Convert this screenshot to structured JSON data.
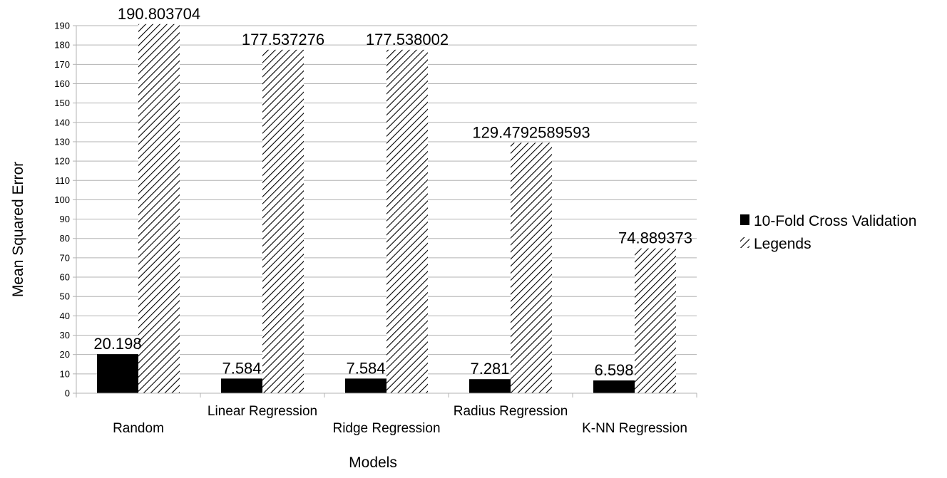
{
  "chart_data": {
    "type": "bar",
    "title": "",
    "xlabel": "Models",
    "ylabel": "Mean Squared Error",
    "categories": [
      "Random",
      "Linear Regression",
      "Ridge Regression",
      "Radius Regression",
      "K-NN Regression"
    ],
    "series": [
      {
        "name": "10-Fold Cross Validation",
        "values": [
          20.198,
          7.584,
          7.584,
          7.281,
          6.598
        ],
        "labels": [
          "20.198",
          "7.584",
          "7.584",
          "7.281",
          "6.598"
        ],
        "fill": "solid",
        "color": "#000000"
      },
      {
        "name": "Legends",
        "values": [
          190.803704,
          177.537276,
          177.538002,
          129.4792589593,
          74.889373
        ],
        "labels": [
          "190.803704",
          "177.537276",
          "177.538002",
          "129.4792589593",
          "74.889373"
        ],
        "fill": "hatched",
        "color": "#000000"
      }
    ],
    "ylim": [
      0,
      190
    ],
    "ytick_step": 10,
    "grid": true,
    "legend_position": "right"
  }
}
